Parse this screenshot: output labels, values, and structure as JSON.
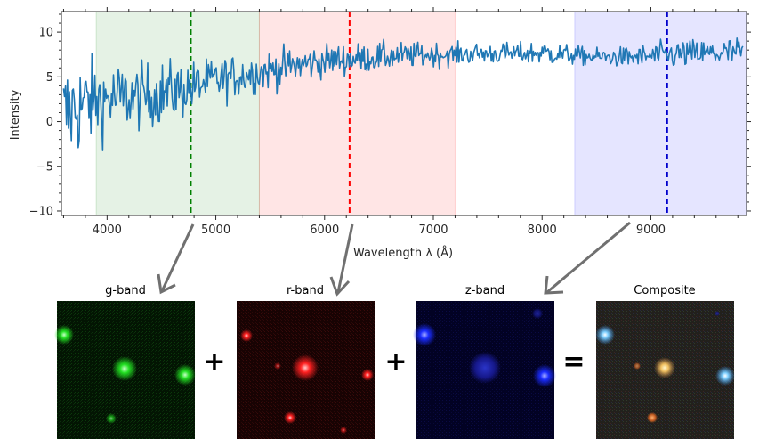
{
  "chart_data": {
    "type": "line",
    "title": "",
    "xlabel": "Wavelength λ (Å)",
    "ylabel": "Intensity",
    "xlim": [
      3580,
      9880
    ],
    "ylim": [
      -10.5,
      12.3
    ],
    "xticks": [
      4000,
      5000,
      6000,
      7000,
      8000,
      9000
    ],
    "xtick_labels": [
      "4000",
      "5000",
      "6000",
      "7000",
      "8000",
      "9000"
    ],
    "yticks": [
      -10,
      -5,
      0,
      5,
      10
    ],
    "ytick_labels": [
      "−10",
      "−5",
      "0",
      "5",
      "10"
    ],
    "grid": false,
    "series": [
      {
        "color": "#1f77b4",
        "anchors_x": [
          3600,
          3700,
          3800,
          3900,
          4000,
          4100,
          4200,
          4300,
          4400,
          4500,
          4600,
          4700,
          4800,
          4900,
          5000,
          5200,
          5400,
          5600,
          5800,
          6000,
          6200,
          6400,
          6600,
          6800,
          7000,
          7200,
          7400,
          7600,
          7800,
          8000,
          8200,
          8400,
          8600,
          8800,
          9000,
          9200,
          9400,
          9600,
          9850
        ],
        "anchors_y": [
          0.5,
          1.5,
          2.0,
          2.3,
          2.5,
          2.6,
          2.7,
          2.8,
          3.0,
          3.2,
          3.4,
          3.6,
          4.0,
          4.3,
          4.6,
          5.1,
          5.5,
          6.0,
          6.4,
          6.8,
          7.0,
          7.1,
          7.3,
          7.4,
          7.5,
          7.5,
          7.6,
          7.6,
          7.6,
          7.7,
          7.5,
          7.3,
          7.2,
          7.2,
          7.3,
          7.5,
          7.6,
          7.6,
          7.8
        ],
        "noise_amplitude": [
          3.2,
          3.0,
          2.6,
          2.3,
          2.1,
          2.0,
          1.9,
          1.8,
          1.8,
          1.8,
          1.7,
          1.6,
          1.4,
          1.3,
          1.3,
          1.2,
          1.1,
          1.1,
          1.0,
          0.9,
          0.9,
          0.8,
          0.8,
          0.7,
          0.7,
          0.6,
          0.6,
          0.6,
          0.6,
          0.7,
          0.6,
          0.5,
          0.5,
          0.6,
          0.7,
          0.8,
          0.8,
          0.8,
          0.9
        ]
      }
    ],
    "bands": [
      {
        "name": "g",
        "x0": 3900,
        "x1": 5400,
        "color": "#008000",
        "alpha": 0.1,
        "center": 4770,
        "center_color": "#008000"
      },
      {
        "name": "r",
        "x0": 5400,
        "x1": 7200,
        "color": "#ff0000",
        "alpha": 0.1,
        "center": 6230,
        "center_color": "#ff0000"
      },
      {
        "name": "z",
        "x0": 8300,
        "x1": 9880,
        "color": "#0000ff",
        "alpha": 0.1,
        "center": 9150,
        "center_color": "#0000cc"
      }
    ]
  },
  "panels": [
    {
      "title": "g-band",
      "background": "#041504",
      "glow": "#22ff22"
    },
    {
      "title": "r-band",
      "background": "#150404",
      "glow": "#ff2222"
    },
    {
      "title": "z-band",
      "background": "#03032a",
      "glow": "#2a2aff"
    },
    {
      "title": "Composite",
      "background": "#1f1d19",
      "glow": "#ffd878"
    }
  ],
  "operators": [
    "+",
    "+",
    "="
  ],
  "arrow_color": "#707070"
}
